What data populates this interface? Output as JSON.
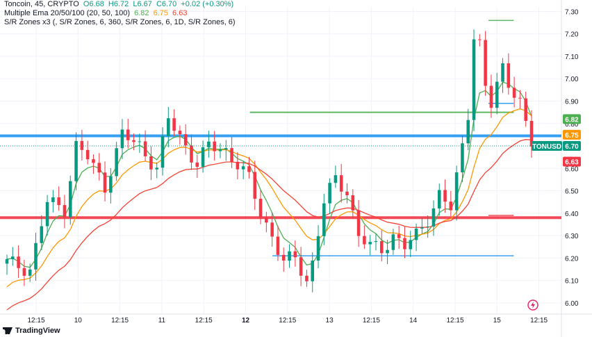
{
  "legend": {
    "line1": {
      "symbol": "Toncoin, 45, CRYPTO",
      "open": "O6.68",
      "high": "H6.72",
      "low": "L6.67",
      "close": "C6.70",
      "change": "+0.02 (+0.30%)"
    },
    "line2": {
      "name": "Multiple Ema 20/50/100 (20, 50, 100)",
      "v1": "6.82",
      "v2": "6.75",
      "v3": "6.63"
    },
    "line3": "S/R Zones x3 (, S/R Zones, 6, 360, S/R Zones, 6, 1D, S/R Zones, 6)"
  },
  "footer": {
    "brand": "TradingView"
  },
  "colors": {
    "up": "#089981",
    "down": "#f23645",
    "ema20": "#4caf50",
    "ema50": "#ff9800",
    "ema100": "#f44336",
    "blue": "#2196f3",
    "green": "#4caf50",
    "red": "#f23645"
  },
  "chart_data": {
    "type": "candlestick",
    "symbol": "TONUSD",
    "y_axis": {
      "range": [
        5.95,
        7.32
      ],
      "ticks": [
        "7.30",
        "7.20",
        "7.10",
        "7.00",
        "6.90",
        "6.80",
        "6.70",
        "6.60",
        "6.50",
        "6.40",
        "6.30",
        "6.20",
        "6.10",
        "6.00"
      ]
    },
    "x_axis": {
      "ticks": [
        "12:15",
        "10",
        "12:15",
        "11",
        "12:15",
        "12",
        "12:15",
        "13",
        "12:15",
        "14",
        "12:15",
        "15",
        "12:15"
      ],
      "bold": [
        "12"
      ]
    },
    "price_labels": [
      {
        "value": 6.82,
        "text": "6.82",
        "color": "#4caf50"
      },
      {
        "value": 6.75,
        "text": "6.75",
        "color": "#ff9800"
      },
      {
        "value": 6.7,
        "text": "TONUSD",
        "color": "#089981"
      },
      {
        "value": 6.7,
        "text": "6.70",
        "color": "#089981"
      },
      {
        "value": 6.63,
        "text": "6.63",
        "color": "#f23645"
      }
    ],
    "levels": [
      {
        "price": 6.745,
        "color": "#2196f3",
        "from": 0.0,
        "to": 1.0,
        "width": 4
      },
      {
        "price": 6.85,
        "color": "#4caf50",
        "from": 0.445,
        "to": 0.915,
        "width": 2
      },
      {
        "price": 7.26,
        "color": "#4caf50",
        "from": 0.87,
        "to": 0.915,
        "width": 1.5
      },
      {
        "price": 6.89,
        "color": "#2196f3",
        "from": 0.87,
        "to": 0.915,
        "width": 1.5
      },
      {
        "price": 6.38,
        "color": "#f23645",
        "from": 0.0,
        "to": 1.0,
        "width": 4
      },
      {
        "price": 6.39,
        "color": "#f23645",
        "from": 0.87,
        "to": 0.915,
        "width": 1.5
      },
      {
        "price": 6.21,
        "color": "#2196f3",
        "from": 0.485,
        "to": 0.915,
        "width": 1.5
      }
    ],
    "waypoints": [
      [
        0,
        6.18
      ],
      [
        4,
        6.15
      ],
      [
        7,
        6.45
      ],
      [
        10,
        6.42
      ],
      [
        12,
        6.7
      ],
      [
        14,
        6.65
      ],
      [
        17,
        6.52
      ],
      [
        20,
        6.75
      ],
      [
        23,
        6.7
      ],
      [
        26,
        6.6
      ],
      [
        28,
        6.82
      ],
      [
        31,
        6.7
      ],
      [
        33,
        6.62
      ],
      [
        35,
        6.7
      ],
      [
        38,
        6.68
      ],
      [
        40,
        6.62
      ],
      [
        42,
        6.55
      ],
      [
        44,
        6.4
      ],
      [
        46,
        6.3
      ],
      [
        48,
        6.18
      ],
      [
        50,
        6.2
      ],
      [
        52,
        6.1
      ],
      [
        53,
        6.18
      ],
      [
        55,
        6.45
      ],
      [
        57,
        6.55
      ],
      [
        59,
        6.5
      ],
      [
        61,
        6.3
      ],
      [
        63,
        6.25
      ],
      [
        65,
        6.24
      ],
      [
        67,
        6.3
      ],
      [
        69,
        6.25
      ],
      [
        71,
        6.3
      ],
      [
        73,
        6.38
      ],
      [
        75,
        6.48
      ],
      [
        77,
        6.42
      ],
      [
        79,
        6.7
      ],
      [
        80,
        6.85
      ],
      [
        81,
        7.2
      ],
      [
        82,
        7.15
      ],
      [
        83,
        6.95
      ],
      [
        84,
        6.88
      ],
      [
        85,
        6.98
      ],
      [
        86,
        7.05
      ],
      [
        87,
        6.98
      ],
      [
        88,
        6.95
      ],
      [
        89,
        6.9
      ],
      [
        90,
        6.78
      ],
      [
        91,
        6.7
      ]
    ],
    "candle_count": 92,
    "series": [
      {
        "name": "EMA 20",
        "color": "#4caf50",
        "period": 20
      },
      {
        "name": "EMA 50",
        "color": "#ff9800",
        "period": 50
      },
      {
        "name": "EMA 100",
        "color": "#f44336",
        "period": 100
      }
    ]
  }
}
